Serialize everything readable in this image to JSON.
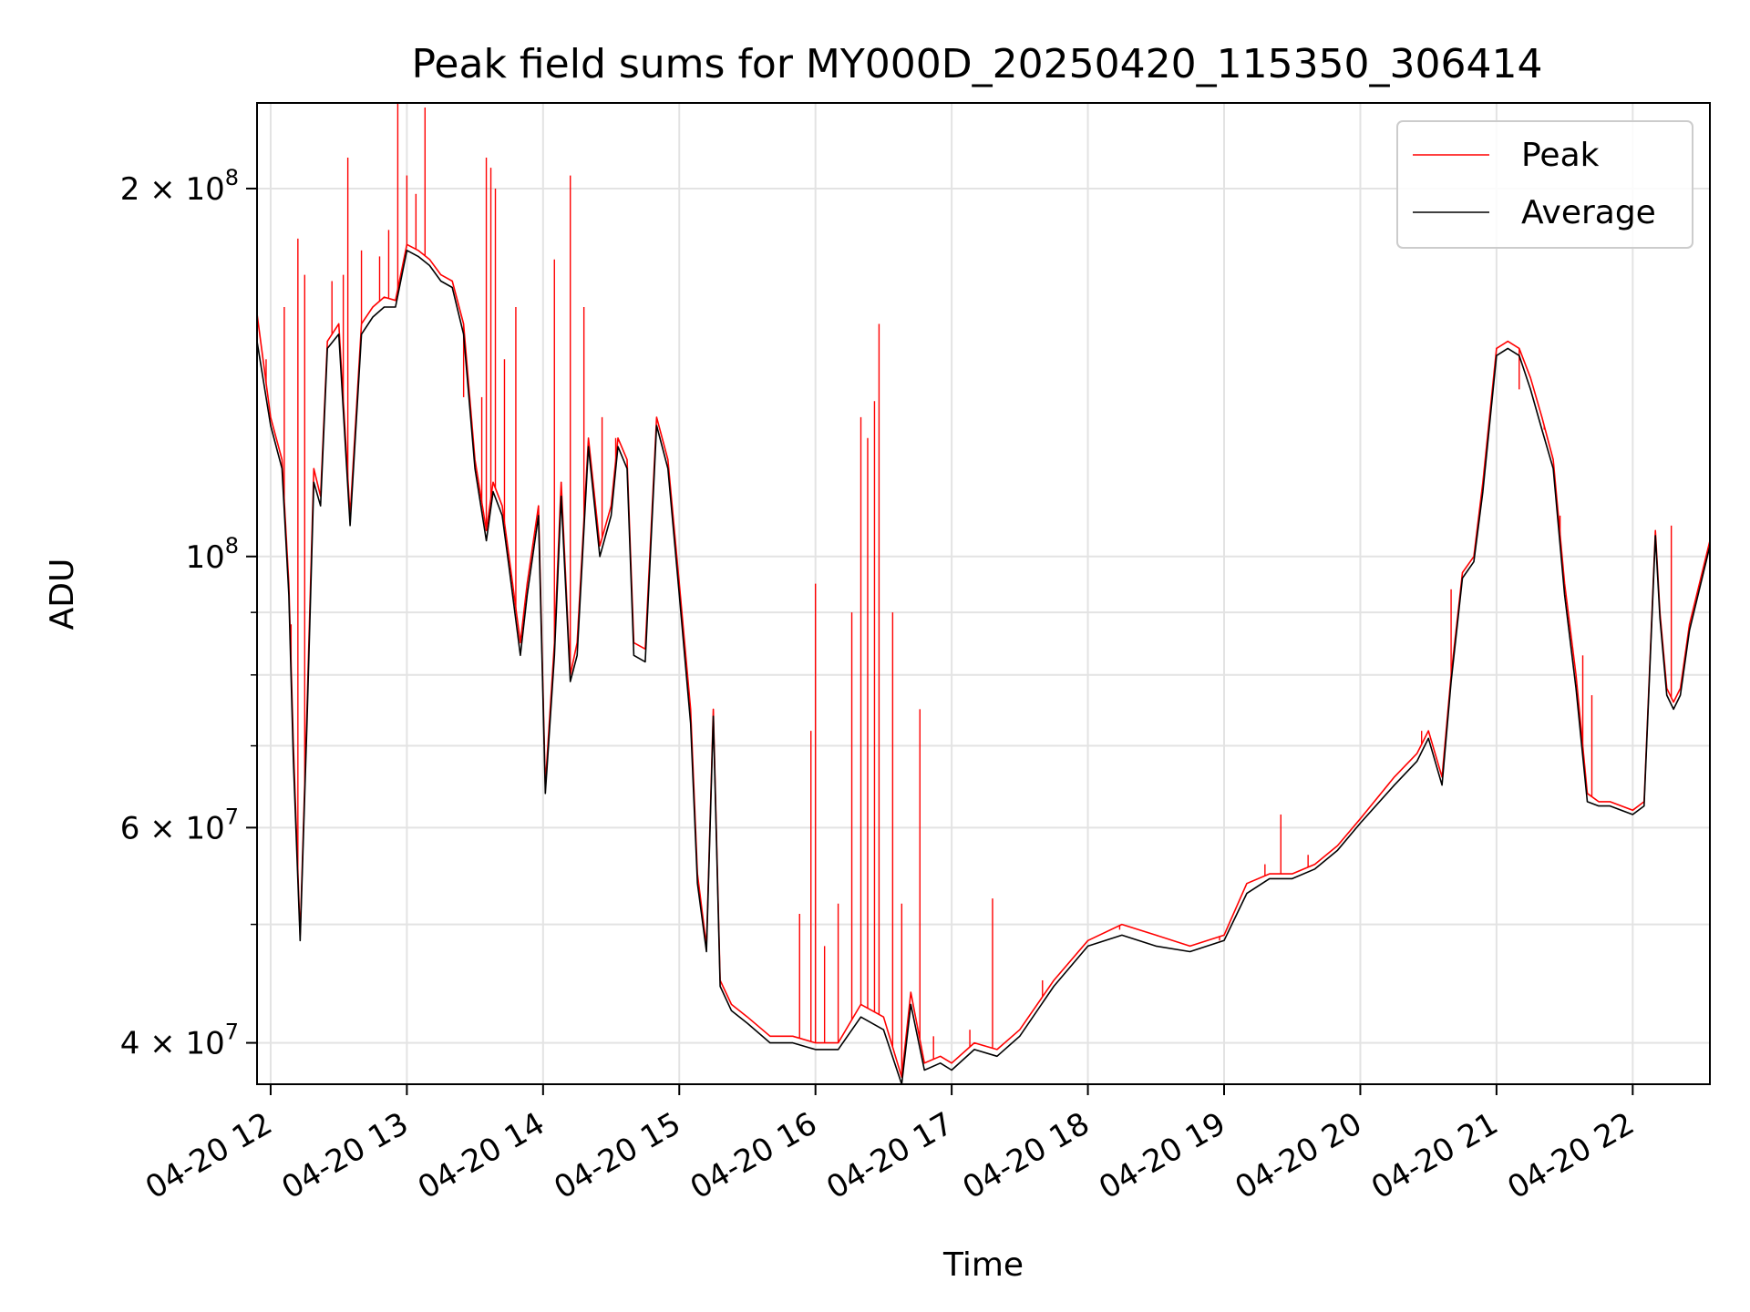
{
  "chart_data": {
    "type": "line",
    "title": "Peak field sums for MY000D_20250420_115350_306414",
    "xlabel": "Time",
    "ylabel": "ADU",
    "yscale": "log",
    "ylim": [
      37000000,
      235000000
    ],
    "xlim": [
      "2025-04-20 11:54",
      "2025-04-20 22:34"
    ],
    "grid": true,
    "legend_position": "top-right",
    "x_ticks": [
      "04-20 12",
      "04-20 13",
      "04-20 14",
      "04-20 15",
      "04-20 16",
      "04-20 17",
      "04-20 18",
      "04-20 19",
      "04-20 20",
      "04-20 21",
      "04-20 22"
    ],
    "y_tick_labels": [
      {
        "mantissa": "4",
        "exp": "7",
        "value": 40000000
      },
      {
        "mantissa": "6",
        "exp": "7",
        "value": 60000000
      },
      {
        "mantissa": "",
        "exp": "8",
        "value": 100000000
      },
      {
        "mantissa": "2",
        "exp": "8",
        "value": 200000000
      }
    ],
    "y_minor_ticks": [
      50000000,
      70000000,
      80000000,
      90000000
    ],
    "x": [
      "11:54",
      "12:00",
      "12:05",
      "12:08",
      "12:10",
      "12:13",
      "12:16",
      "12:19",
      "12:22",
      "12:25",
      "12:30",
      "12:35",
      "12:40",
      "12:45",
      "12:50",
      "12:55",
      "13:00",
      "13:05",
      "13:10",
      "13:15",
      "13:20",
      "13:25",
      "13:30",
      "13:35",
      "13:38",
      "13:42",
      "13:45",
      "13:50",
      "13:53",
      "13:58",
      "14:01",
      "14:05",
      "14:08",
      "14:12",
      "14:15",
      "14:20",
      "14:25",
      "14:30",
      "14:33",
      "14:37",
      "14:40",
      "14:45",
      "14:50",
      "14:55",
      "15:00",
      "15:05",
      "15:08",
      "15:12",
      "15:15",
      "15:18",
      "15:23",
      "15:30",
      "15:40",
      "15:50",
      "16:00",
      "16:10",
      "16:20",
      "16:30",
      "16:38",
      "16:42",
      "16:48",
      "16:55",
      "17:00",
      "17:10",
      "17:20",
      "17:30",
      "17:45",
      "18:00",
      "18:15",
      "18:30",
      "18:45",
      "19:00",
      "19:10",
      "19:20",
      "19:30",
      "19:40",
      "19:50",
      "20:00",
      "20:15",
      "20:25",
      "20:30",
      "20:36",
      "20:40",
      "20:45",
      "20:50",
      "20:54",
      "21:00",
      "21:05",
      "21:10",
      "21:15",
      "21:20",
      "21:25",
      "21:30",
      "21:35",
      "21:40",
      "21:45",
      "21:50",
      "22:00",
      "22:05",
      "22:10",
      "22:12",
      "22:15",
      "22:18",
      "22:21",
      "22:25",
      "22:30",
      "22:34"
    ],
    "series": [
      {
        "name": "Peak",
        "color": "#ff0000",
        "values": [
          158000000,
          130000000,
          120000000,
          95000000,
          70000000,
          49000000,
          75000000,
          118000000,
          112000000,
          150000000,
          155000000,
          108000000,
          155000000,
          160000000,
          163000000,
          162000000,
          180000000,
          178000000,
          175000000,
          170000000,
          168000000,
          155000000,
          120000000,
          105000000,
          115000000,
          110000000,
          100000000,
          85000000,
          95000000,
          110000000,
          65000000,
          85000000,
          115000000,
          80000000,
          85000000,
          125000000,
          102000000,
          110000000,
          125000000,
          120000000,
          85000000,
          84000000,
          130000000,
          120000000,
          95000000,
          75000000,
          55000000,
          48000000,
          75000000,
          45000000,
          43000000,
          42000000,
          40500000,
          40500000,
          40000000,
          40000000,
          43000000,
          42000000,
          37500000,
          44000000,
          38500000,
          39000000,
          38500000,
          40000000,
          39500000,
          41000000,
          45000000,
          48500000,
          50000000,
          49000000,
          48000000,
          49000000,
          54000000,
          55000000,
          55000000,
          56000000,
          58000000,
          61000000,
          66000000,
          69000000,
          72000000,
          66000000,
          80000000,
          97000000,
          100000000,
          115000000,
          148000000,
          150000000,
          148000000,
          140000000,
          130000000,
          120000000,
          95000000,
          80000000,
          64000000,
          63000000,
          63000000,
          62000000,
          63000000,
          105000000,
          90000000,
          78000000,
          76000000,
          78000000,
          88000000,
          96000000,
          103000000
        ],
        "spikes": [
          [
            "11:58",
            145000000
          ],
          [
            "12:06",
            160000000
          ],
          [
            "12:09",
            88000000
          ],
          [
            "12:12",
            182000000
          ],
          [
            "12:15",
            170000000
          ],
          [
            "12:27",
            168000000
          ],
          [
            "12:32",
            170000000
          ],
          [
            "12:34",
            212000000
          ],
          [
            "12:40",
            178000000
          ],
          [
            "12:48",
            176000000
          ],
          [
            "12:52",
            185000000
          ],
          [
            "12:56",
            235000000
          ],
          [
            "13:00",
            205000000
          ],
          [
            "13:04",
            198000000
          ],
          [
            "13:08",
            233000000
          ],
          [
            "13:25",
            135000000
          ],
          [
            "13:33",
            135000000
          ],
          [
            "13:35",
            212000000
          ],
          [
            "13:37",
            208000000
          ],
          [
            "13:39",
            200000000
          ],
          [
            "13:43",
            145000000
          ],
          [
            "13:48",
            160000000
          ],
          [
            "14:05",
            175000000
          ],
          [
            "14:12",
            205000000
          ],
          [
            "14:18",
            160000000
          ],
          [
            "14:26",
            130000000
          ],
          [
            "14:32",
            125000000
          ],
          [
            "15:53",
            51000000
          ],
          [
            "15:58",
            72000000
          ],
          [
            "16:00",
            95000000
          ],
          [
            "16:04",
            48000000
          ],
          [
            "16:10",
            52000000
          ],
          [
            "16:16",
            90000000
          ],
          [
            "16:20",
            130000000
          ],
          [
            "16:23",
            125000000
          ],
          [
            "16:26",
            134000000
          ],
          [
            "16:28",
            155000000
          ],
          [
            "16:34",
            90000000
          ],
          [
            "16:38",
            52000000
          ],
          [
            "16:46",
            75000000
          ],
          [
            "16:52",
            40500000
          ],
          [
            "17:08",
            41000000
          ],
          [
            "17:18",
            52500000
          ],
          [
            "17:40",
            45000000
          ],
          [
            "18:14",
            49500000
          ],
          [
            "18:58",
            48500000
          ],
          [
            "19:18",
            56000000
          ],
          [
            "19:25",
            61500000
          ],
          [
            "19:37",
            57000000
          ],
          [
            "20:27",
            72000000
          ],
          [
            "20:40",
            94000000
          ],
          [
            "21:10",
            137000000
          ],
          [
            "21:21",
            127000000
          ],
          [
            "21:28",
            108000000
          ],
          [
            "21:38",
            83000000
          ],
          [
            "21:42",
            77000000
          ],
          [
            "22:17",
            106000000
          ]
        ]
      },
      {
        "name": "Average",
        "color": "#000000",
        "values": [
          150000000,
          128000000,
          118000000,
          93000000,
          68000000,
          48500000,
          73000000,
          115000000,
          110000000,
          148000000,
          152000000,
          106000000,
          152000000,
          157000000,
          160000000,
          160000000,
          178000000,
          176000000,
          173000000,
          168000000,
          166000000,
          152000000,
          118000000,
          103000000,
          113000000,
          108000000,
          98000000,
          83000000,
          93000000,
          108000000,
          64000000,
          83000000,
          112000000,
          79000000,
          83000000,
          123000000,
          100000000,
          108000000,
          123000000,
          118000000,
          83000000,
          82000000,
          128000000,
          118000000,
          93000000,
          73000000,
          54000000,
          47500000,
          74000000,
          44500000,
          42500000,
          41500000,
          40000000,
          40000000,
          39500000,
          39500000,
          42000000,
          41000000,
          37000000,
          43000000,
          38000000,
          38500000,
          38000000,
          39500000,
          39000000,
          40500000,
          44500000,
          48000000,
          49000000,
          48000000,
          47500000,
          48500000,
          53000000,
          54500000,
          54500000,
          55500000,
          57500000,
          60500000,
          65000000,
          68000000,
          71000000,
          65000000,
          79000000,
          96000000,
          99000000,
          113000000,
          146000000,
          148000000,
          146000000,
          137000000,
          127000000,
          118000000,
          93000000,
          78000000,
          63000000,
          62500000,
          62500000,
          61500000,
          62500000,
          104000000,
          89000000,
          77000000,
          75000000,
          77000000,
          87000000,
          95000000,
          102000000
        ]
      }
    ]
  }
}
